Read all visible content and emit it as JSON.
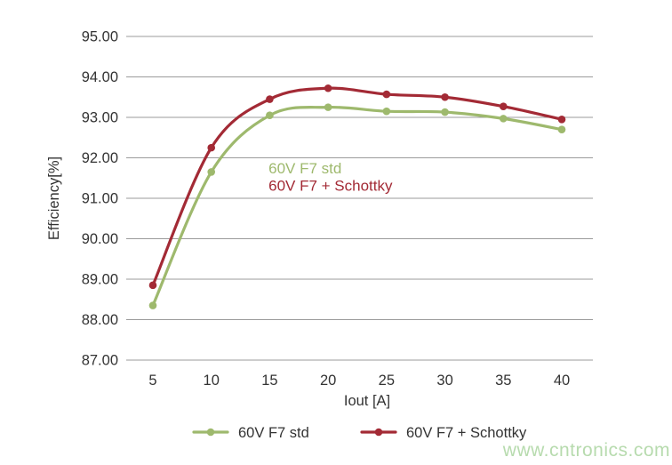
{
  "watermark": {
    "text": "www.cntronics.com",
    "color": "#b7dbae"
  },
  "chart_data": {
    "type": "line",
    "title": "",
    "xlabel": "Iout [A]",
    "ylabel": "Efficiency[%]",
    "x": [
      5,
      10,
      15,
      20,
      25,
      30,
      35,
      40
    ],
    "xticks": [
      "5",
      "10",
      "15",
      "20",
      "25",
      "30",
      "35",
      "40"
    ],
    "xlim": [
      2.7,
      42.8
    ],
    "ylim": [
      87,
      95
    ],
    "ytick_step": 1,
    "ytick_decimals": 2,
    "grid": "horizontal-only",
    "gridline_color": "#9b9b9b",
    "axis_text_color": "#333333",
    "line_style": "smooth",
    "marker": "circle",
    "legend_position": "bottom",
    "series": [
      {
        "name": "60V F7 std",
        "color": "#9eb96d",
        "values": [
          88.35,
          91.65,
          93.05,
          93.25,
          93.15,
          93.13,
          92.97,
          92.7
        ]
      },
      {
        "name": "60V F7 + Schottky",
        "color": "#a32a35",
        "values": [
          88.85,
          92.25,
          93.45,
          93.72,
          93.57,
          93.5,
          93.27,
          92.95
        ]
      }
    ],
    "annotations": [
      {
        "text": "60V F7 std",
        "color": "#9eb96d",
        "x": 14.9,
        "y": 91.75
      },
      {
        "text": "60V F7 + Schottky",
        "color": "#a32a35",
        "x": 14.9,
        "y": 91.32
      }
    ]
  }
}
